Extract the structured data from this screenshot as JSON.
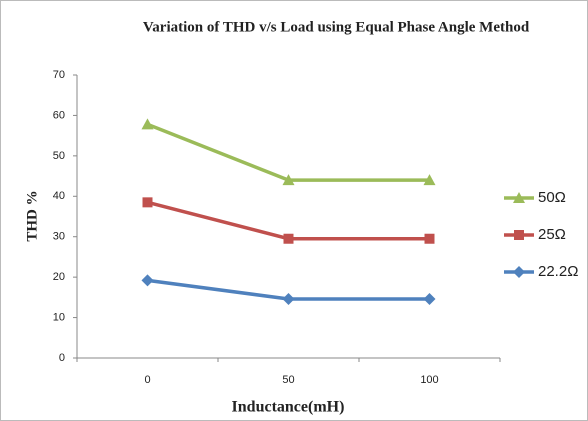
{
  "chart_data": {
    "type": "line",
    "title": "Variation of THD v/s Load using Equal Phase Angle Method",
    "x_label": "Inductance(mH)",
    "y_label": "THD %",
    "categories": [
      "0",
      "50",
      "100"
    ],
    "series": [
      {
        "name": "50Ω",
        "color": "#9bbb59",
        "marker": "triangle",
        "values": [
          57.8,
          44,
          44
        ]
      },
      {
        "name": "25Ω",
        "color": "#c0504d",
        "marker": "square",
        "values": [
          38.5,
          29.5,
          29.5
        ]
      },
      {
        "name": "22.2Ω",
        "color": "#4f81bd",
        "marker": "diamond",
        "values": [
          19.2,
          14.6,
          14.6
        ]
      }
    ],
    "ylim": [
      0,
      70
    ],
    "yticks": [
      0,
      10,
      20,
      30,
      40,
      50,
      60,
      70
    ],
    "grid": false,
    "legend": "right"
  }
}
